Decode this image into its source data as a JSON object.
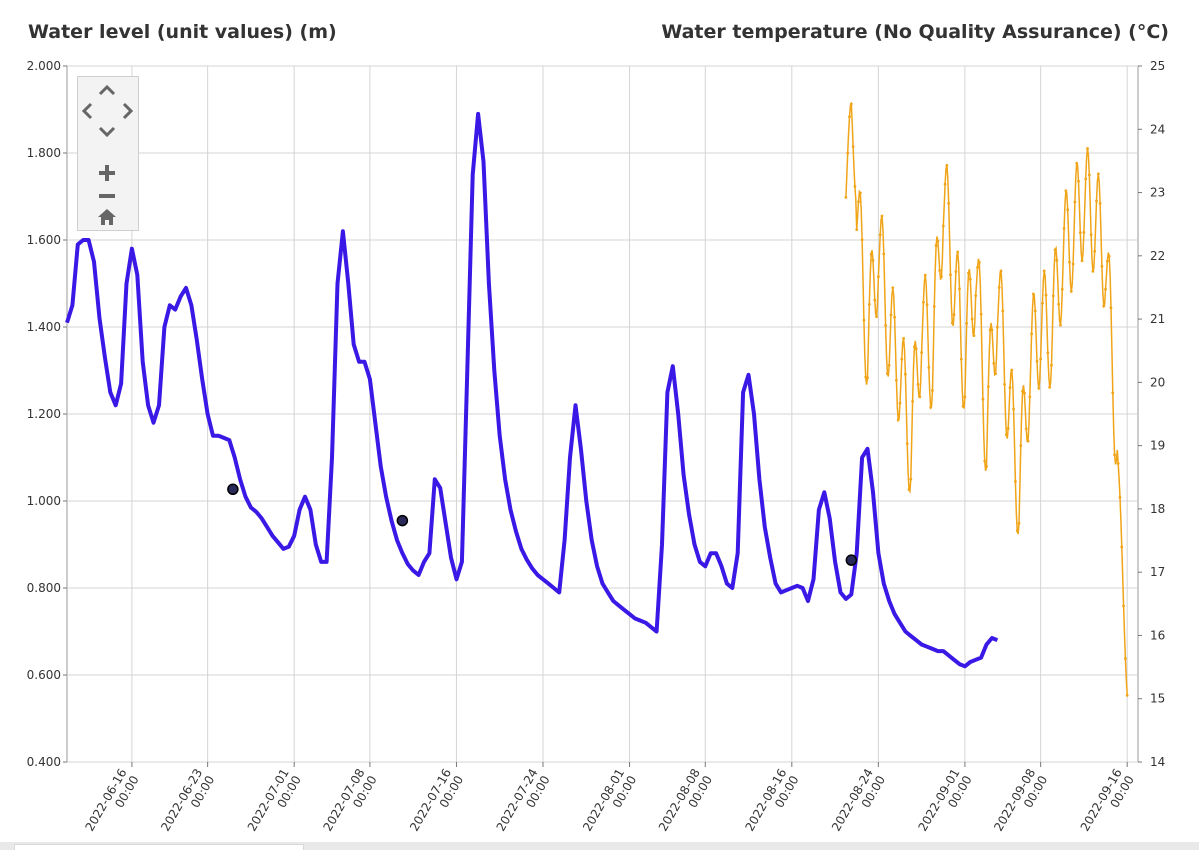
{
  "chart_data": {
    "type": "line",
    "title_left": "Water level (unit values) (m)",
    "title_right": "Water temperature (No Quality Assurance) (°C)",
    "y_left": {
      "min": 0.4,
      "max": 2.0,
      "ticks": [
        "0.400",
        "0.600",
        "0.800",
        "1.000",
        "1.200",
        "1.400",
        "1.600",
        "1.800",
        "2.000"
      ]
    },
    "y_right": {
      "min": 14,
      "max": 25,
      "ticks": [
        "14",
        "15",
        "16",
        "17",
        "18",
        "19",
        "20",
        "21",
        "22",
        "23",
        "24",
        "25"
      ]
    },
    "x_axis": {
      "start": "2022-06-10",
      "end": "2022-09-17",
      "ticks": [
        {
          "date": "2022-06-16",
          "line1": "2022-06-16",
          "line2": "00:00"
        },
        {
          "date": "2022-06-23",
          "line1": "2022-06-23",
          "line2": "00:00"
        },
        {
          "date": "2022-07-01",
          "line1": "2022-07-01",
          "line2": "00:00"
        },
        {
          "date": "2022-07-08",
          "line1": "2022-07-08",
          "line2": "00:00"
        },
        {
          "date": "2022-07-16",
          "line1": "2022-07-16",
          "line2": "00:00"
        },
        {
          "date": "2022-07-24",
          "line1": "2022-07-24",
          "line2": "00:00"
        },
        {
          "date": "2022-08-01",
          "line1": "2022-08-01",
          "line2": "00:00"
        },
        {
          "date": "2022-08-08",
          "line1": "2022-08-08",
          "line2": "00:00"
        },
        {
          "date": "2022-08-16",
          "line1": "2022-08-16",
          "line2": "00:00"
        },
        {
          "date": "2022-08-24",
          "line1": "2022-08-24",
          "line2": "00:00"
        },
        {
          "date": "2022-09-01",
          "line1": "2022-09-01",
          "line2": "00:00"
        },
        {
          "date": "2022-09-08",
          "line1": "2022-09-08",
          "line2": "00:00"
        },
        {
          "date": "2022-09-16",
          "line1": "2022-09-16",
          "line2": "00:00"
        }
      ]
    },
    "grid": true,
    "series": [
      {
        "axis": "left",
        "color": "#3a18e6",
        "points": [
          [
            "2022-06-10T00:00",
            1.41
          ],
          [
            "2022-06-10T12:00",
            1.45
          ],
          [
            "2022-06-11T00:00",
            1.59
          ],
          [
            "2022-06-11T12:00",
            1.6
          ],
          [
            "2022-06-12T00:00",
            1.6
          ],
          [
            "2022-06-12T12:00",
            1.55
          ],
          [
            "2022-06-13T00:00",
            1.42
          ],
          [
            "2022-06-13T12:00",
            1.33
          ],
          [
            "2022-06-14T00:00",
            1.25
          ],
          [
            "2022-06-14T12:00",
            1.22
          ],
          [
            "2022-06-15T00:00",
            1.27
          ],
          [
            "2022-06-15T12:00",
            1.5
          ],
          [
            "2022-06-16T00:00",
            1.58
          ],
          [
            "2022-06-16T12:00",
            1.52
          ],
          [
            "2022-06-17T00:00",
            1.32
          ],
          [
            "2022-06-17T12:00",
            1.22
          ],
          [
            "2022-06-18T00:00",
            1.18
          ],
          [
            "2022-06-18T12:00",
            1.22
          ],
          [
            "2022-06-19T00:00",
            1.4
          ],
          [
            "2022-06-19T12:00",
            1.45
          ],
          [
            "2022-06-20T00:00",
            1.44
          ],
          [
            "2022-06-20T12:00",
            1.47
          ],
          [
            "2022-06-21T00:00",
            1.49
          ],
          [
            "2022-06-21T12:00",
            1.45
          ],
          [
            "2022-06-22T00:00",
            1.37
          ],
          [
            "2022-06-22T12:00",
            1.28
          ],
          [
            "2022-06-23T00:00",
            1.2
          ],
          [
            "2022-06-23T12:00",
            1.15
          ],
          [
            "2022-06-24T00:00",
            1.15
          ],
          [
            "2022-06-24T12:00",
            1.145
          ],
          [
            "2022-06-25T00:00",
            1.14
          ],
          [
            "2022-06-25T12:00",
            1.1
          ],
          [
            "2022-06-26T00:00",
            1.05
          ],
          [
            "2022-06-26T12:00",
            1.01
          ],
          [
            "2022-06-27T00:00",
            0.985
          ],
          [
            "2022-06-27T12:00",
            0.975
          ],
          [
            "2022-06-28T00:00",
            0.96
          ],
          [
            "2022-06-28T12:00",
            0.94
          ],
          [
            "2022-06-29T00:00",
            0.92
          ],
          [
            "2022-06-29T12:00",
            0.905
          ],
          [
            "2022-06-30T00:00",
            0.89
          ],
          [
            "2022-06-30T12:00",
            0.895
          ],
          [
            "2022-07-01T00:00",
            0.92
          ],
          [
            "2022-07-01T12:00",
            0.98
          ],
          [
            "2022-07-02T00:00",
            1.01
          ],
          [
            "2022-07-02T12:00",
            0.98
          ],
          [
            "2022-07-03T00:00",
            0.9
          ],
          [
            "2022-07-03T12:00",
            0.86
          ],
          [
            "2022-07-04T00:00",
            0.86
          ],
          [
            "2022-07-04T12:00",
            1.1
          ],
          [
            "2022-07-05T00:00",
            1.5
          ],
          [
            "2022-07-05T12:00",
            1.62
          ],
          [
            "2022-07-06T00:00",
            1.5
          ],
          [
            "2022-07-06T12:00",
            1.36
          ],
          [
            "2022-07-07T00:00",
            1.32
          ],
          [
            "2022-07-07T12:00",
            1.32
          ],
          [
            "2022-07-08T00:00",
            1.28
          ],
          [
            "2022-07-08T12:00",
            1.18
          ],
          [
            "2022-07-09T00:00",
            1.08
          ],
          [
            "2022-07-09T12:00",
            1.01
          ],
          [
            "2022-07-10T00:00",
            0.955
          ],
          [
            "2022-07-10T12:00",
            0.91
          ],
          [
            "2022-07-11T00:00",
            0.88
          ],
          [
            "2022-07-11T12:00",
            0.855
          ],
          [
            "2022-07-12T00:00",
            0.84
          ],
          [
            "2022-07-12T12:00",
            0.83
          ],
          [
            "2022-07-13T00:00",
            0.86
          ],
          [
            "2022-07-13T12:00",
            0.88
          ],
          [
            "2022-07-14T00:00",
            1.05
          ],
          [
            "2022-07-14T12:00",
            1.03
          ],
          [
            "2022-07-15T00:00",
            0.95
          ],
          [
            "2022-07-15T12:00",
            0.87
          ],
          [
            "2022-07-16T00:00",
            0.82
          ],
          [
            "2022-07-16T12:00",
            0.86
          ],
          [
            "2022-07-17T00:00",
            1.3
          ],
          [
            "2022-07-17T12:00",
            1.75
          ],
          [
            "2022-07-18T00:00",
            1.89
          ],
          [
            "2022-07-18T12:00",
            1.78
          ],
          [
            "2022-07-19T00:00",
            1.5
          ],
          [
            "2022-07-19T12:00",
            1.3
          ],
          [
            "2022-07-20T00:00",
            1.15
          ],
          [
            "2022-07-20T12:00",
            1.05
          ],
          [
            "2022-07-21T00:00",
            0.98
          ],
          [
            "2022-07-21T12:00",
            0.93
          ],
          [
            "2022-07-22T00:00",
            0.89
          ],
          [
            "2022-07-22T12:00",
            0.865
          ],
          [
            "2022-07-23T00:00",
            0.845
          ],
          [
            "2022-07-23T12:00",
            0.83
          ],
          [
            "2022-07-24T00:00",
            0.82
          ],
          [
            "2022-07-24T12:00",
            0.81
          ],
          [
            "2022-07-25T00:00",
            0.8
          ],
          [
            "2022-07-25T12:00",
            0.79
          ],
          [
            "2022-07-26T00:00",
            0.91
          ],
          [
            "2022-07-26T12:00",
            1.1
          ],
          [
            "2022-07-27T00:00",
            1.22
          ],
          [
            "2022-07-27T12:00",
            1.12
          ],
          [
            "2022-07-28T00:00",
            1.0
          ],
          [
            "2022-07-28T12:00",
            0.91
          ],
          [
            "2022-07-29T00:00",
            0.85
          ],
          [
            "2022-07-29T12:00",
            0.81
          ],
          [
            "2022-07-30T00:00",
            0.79
          ],
          [
            "2022-07-30T12:00",
            0.77
          ],
          [
            "2022-07-31T00:00",
            0.76
          ],
          [
            "2022-07-31T12:00",
            0.75
          ],
          [
            "2022-08-01T00:00",
            0.74
          ],
          [
            "2022-08-01T12:00",
            0.73
          ],
          [
            "2022-08-02T00:00",
            0.725
          ],
          [
            "2022-08-02T12:00",
            0.72
          ],
          [
            "2022-08-03T00:00",
            0.71
          ],
          [
            "2022-08-03T12:00",
            0.7
          ],
          [
            "2022-08-04T00:00",
            0.9
          ],
          [
            "2022-08-04T12:00",
            1.25
          ],
          [
            "2022-08-05T00:00",
            1.31
          ],
          [
            "2022-08-05T12:00",
            1.2
          ],
          [
            "2022-08-06T00:00",
            1.06
          ],
          [
            "2022-08-06T12:00",
            0.97
          ],
          [
            "2022-08-07T00:00",
            0.9
          ],
          [
            "2022-08-07T12:00",
            0.86
          ],
          [
            "2022-08-08T00:00",
            0.85
          ],
          [
            "2022-08-08T12:00",
            0.88
          ],
          [
            "2022-08-09T00:00",
            0.88
          ],
          [
            "2022-08-09T12:00",
            0.85
          ],
          [
            "2022-08-10T00:00",
            0.81
          ],
          [
            "2022-08-10T12:00",
            0.8
          ],
          [
            "2022-08-11T00:00",
            0.88
          ],
          [
            "2022-08-11T12:00",
            1.25
          ],
          [
            "2022-08-12T00:00",
            1.29
          ],
          [
            "2022-08-12T12:00",
            1.2
          ],
          [
            "2022-08-13T00:00",
            1.05
          ],
          [
            "2022-08-13T12:00",
            0.94
          ],
          [
            "2022-08-14T00:00",
            0.87
          ],
          [
            "2022-08-14T12:00",
            0.81
          ],
          [
            "2022-08-15T00:00",
            0.79
          ],
          [
            "2022-08-15T12:00",
            0.795
          ],
          [
            "2022-08-16T00:00",
            0.8
          ],
          [
            "2022-08-16T12:00",
            0.805
          ],
          [
            "2022-08-17T00:00",
            0.8
          ],
          [
            "2022-08-17T12:00",
            0.77
          ],
          [
            "2022-08-18T00:00",
            0.82
          ],
          [
            "2022-08-18T12:00",
            0.98
          ],
          [
            "2022-08-19T00:00",
            1.02
          ],
          [
            "2022-08-19T12:00",
            0.96
          ],
          [
            "2022-08-20T00:00",
            0.86
          ],
          [
            "2022-08-20T12:00",
            0.79
          ],
          [
            "2022-08-21T00:00",
            0.775
          ],
          [
            "2022-08-21T12:00",
            0.785
          ],
          [
            "2022-08-22T00:00",
            0.88
          ],
          [
            "2022-08-22T12:00",
            1.1
          ],
          [
            "2022-08-23T00:00",
            1.12
          ],
          [
            "2022-08-23T12:00",
            1.02
          ],
          [
            "2022-08-24T00:00",
            0.88
          ],
          [
            "2022-08-24T12:00",
            0.81
          ],
          [
            "2022-08-25T00:00",
            0.77
          ],
          [
            "2022-08-25T12:00",
            0.74
          ],
          [
            "2022-08-26T00:00",
            0.72
          ],
          [
            "2022-08-26T12:00",
            0.7
          ],
          [
            "2022-08-27T00:00",
            0.69
          ],
          [
            "2022-08-27T12:00",
            0.68
          ],
          [
            "2022-08-28T00:00",
            0.67
          ],
          [
            "2022-08-28T12:00",
            0.665
          ],
          [
            "2022-08-29T00:00",
            0.66
          ],
          [
            "2022-08-29T12:00",
            0.655
          ],
          [
            "2022-08-30T00:00",
            0.655
          ],
          [
            "2022-08-30T12:00",
            0.645
          ],
          [
            "2022-08-31T00:00",
            0.635
          ],
          [
            "2022-08-31T12:00",
            0.625
          ],
          [
            "2022-09-01T00:00",
            0.62
          ],
          [
            "2022-09-01T12:00",
            0.63
          ],
          [
            "2022-09-02T00:00",
            0.635
          ],
          [
            "2022-09-02T12:00",
            0.64
          ],
          [
            "2022-09-03T00:00",
            0.67
          ],
          [
            "2022-09-03T12:00",
            0.685
          ],
          [
            "2022-09-04T00:00",
            0.68
          ]
        ]
      },
      {
        "axis": "right",
        "color": "#f0a418",
        "points": []
      }
    ],
    "markers": [
      {
        "date": "2022-06-25T08:00",
        "value": 1.027
      },
      {
        "date": "2022-07-11T00:00",
        "value": 0.955
      },
      {
        "date": "2022-08-21T12:00",
        "value": 0.864
      }
    ]
  },
  "nav": {
    "up_icon": "chevron-up-icon",
    "down_icon": "chevron-down-icon",
    "left_icon": "chevron-left-icon",
    "right_icon": "chevron-right-icon",
    "zoom_in_icon": "plus-icon",
    "zoom_out_icon": "minus-icon",
    "home_icon": "home-icon"
  }
}
